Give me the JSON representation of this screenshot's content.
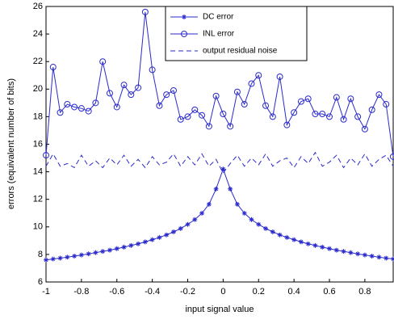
{
  "chart_data": {
    "type": "line",
    "xlabel": "input signal value",
    "ylabel": "errors (equivalent number of bits)",
    "x": [
      -1,
      -0.96,
      -0.92,
      -0.88,
      -0.84,
      -0.8,
      -0.76,
      -0.72,
      -0.68,
      -0.64,
      -0.6,
      -0.56,
      -0.52,
      -0.48,
      -0.44,
      -0.4,
      -0.36,
      -0.32,
      -0.28,
      -0.24,
      -0.2,
      -0.16,
      -0.12,
      -0.08,
      -0.04,
      0,
      0.04,
      0.08,
      0.12,
      0.16,
      0.2,
      0.24,
      0.28,
      0.32,
      0.36,
      0.4,
      0.44,
      0.48,
      0.52,
      0.56,
      0.6,
      0.64,
      0.68,
      0.72,
      0.76,
      0.8,
      0.84,
      0.88,
      0.92,
      0.96
    ],
    "series": [
      {
        "name": "DC error",
        "color": "#2a2acc",
        "marker": "star",
        "dash": false,
        "values": [
          7.6,
          7.67,
          7.73,
          7.8,
          7.88,
          7.96,
          8.04,
          8.13,
          8.22,
          8.31,
          8.42,
          8.53,
          8.65,
          8.77,
          8.91,
          9.07,
          9.23,
          9.42,
          9.64,
          9.88,
          10.18,
          10.53,
          10.99,
          11.64,
          12.75,
          14.2,
          12.75,
          11.64,
          10.99,
          10.53,
          10.18,
          9.88,
          9.64,
          9.42,
          9.23,
          9.07,
          8.91,
          8.77,
          8.65,
          8.53,
          8.42,
          8.31,
          8.22,
          8.13,
          8.04,
          7.96,
          7.88,
          7.8,
          7.73,
          7.67
        ]
      },
      {
        "name": "INL error",
        "color": "#2a2acc",
        "marker": "circle",
        "dash": false,
        "values": [
          15.2,
          21.6,
          18.3,
          18.9,
          18.7,
          18.6,
          18.4,
          19.0,
          22.0,
          19.7,
          18.7,
          20.3,
          19.6,
          20.1,
          25.6,
          21.4,
          18.8,
          19.6,
          19.9,
          17.8,
          18.0,
          18.5,
          18.1,
          17.3,
          19.5,
          18.2,
          17.3,
          19.8,
          18.9,
          20.4,
          21.0,
          18.8,
          18.0,
          20.9,
          17.4,
          18.3,
          19.1,
          19.3,
          18.2,
          18.2,
          18.0,
          19.4,
          17.8,
          19.3,
          18.0,
          17.1,
          18.5,
          19.6,
          18.9,
          15.1
        ]
      },
      {
        "name": "output residual noise",
        "color": "#2a2acc",
        "marker": "none",
        "dash": true,
        "values": [
          14.4,
          15.3,
          14.4,
          14.6,
          14.3,
          15.2,
          14.4,
          14.8,
          14.3,
          15.0,
          14.5,
          15.2,
          14.4,
          14.9,
          14.3,
          15.1,
          14.5,
          14.7,
          15.3,
          14.4,
          15.1,
          14.5,
          15.3,
          14.4,
          14.9,
          13.9,
          14.6,
          15.2,
          14.4,
          15.0,
          14.5,
          15.3,
          14.4,
          14.8,
          15.0,
          14.3,
          15.1,
          14.6,
          15.4,
          14.4,
          14.7,
          15.2,
          14.3,
          15.0,
          14.5,
          15.3,
          14.4,
          14.9,
          15.2,
          14.4
        ]
      }
    ],
    "xlim": [
      -1,
      0.96
    ],
    "ylim": [
      6,
      26
    ],
    "xticks": [
      -1,
      -0.8,
      -0.6,
      -0.4,
      -0.2,
      0,
      0.2,
      0.4,
      0.6,
      0.8
    ],
    "yticks": [
      6,
      8,
      10,
      12,
      14,
      16,
      18,
      20,
      22,
      24,
      26
    ],
    "legend": "upper-right"
  }
}
